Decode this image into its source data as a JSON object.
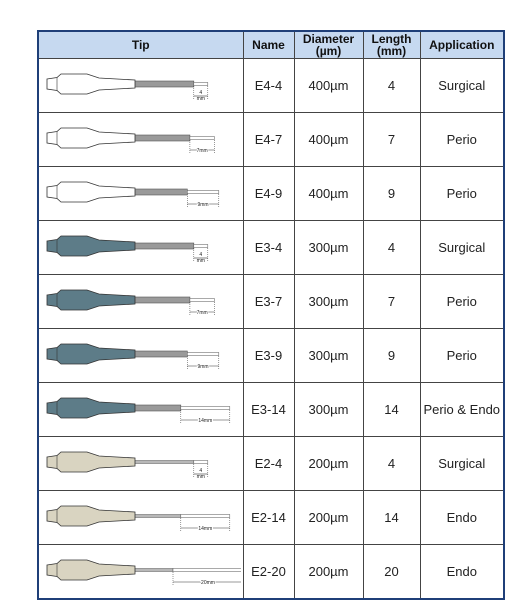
{
  "table": {
    "header": [
      [
        "Tip"
      ],
      [
        "Name"
      ],
      [
        "Diameter",
        "(µm)"
      ],
      [
        "Length",
        "(mm)"
      ],
      [
        "Application"
      ]
    ],
    "rows": [
      {
        "tip_color": "#ffffff",
        "tip_label": [
          "4",
          "mm"
        ],
        "name": "E4-4",
        "diameter": "400µm",
        "length": "4",
        "application": "Surgical"
      },
      {
        "tip_color": "#ffffff",
        "tip_label": [
          "7mm"
        ],
        "name": "E4-7",
        "diameter": "400µm",
        "length": "7",
        "application": "Perio"
      },
      {
        "tip_color": "#ffffff",
        "tip_label": [
          "9mm"
        ],
        "name": "E4-9",
        "diameter": "400µm",
        "length": "9",
        "application": "Perio"
      },
      {
        "tip_color": "#5d7c88",
        "tip_label": [
          "4",
          "mm"
        ],
        "name": "E3-4",
        "diameter": "300µm",
        "length": "4",
        "application": "Surgical"
      },
      {
        "tip_color": "#5d7c88",
        "tip_label": [
          "7mm"
        ],
        "name": "E3-7",
        "diameter": "300µm",
        "length": "7",
        "application": "Perio"
      },
      {
        "tip_color": "#5d7c88",
        "tip_label": [
          "9mm"
        ],
        "name": "E3-9",
        "diameter": "300µm",
        "length": "9",
        "application": "Perio"
      },
      {
        "tip_color": "#5d7c88",
        "tip_label": [
          "14mm"
        ],
        "name": "E3-14",
        "diameter": "300µm",
        "length": "14",
        "application": "Perio & Endo"
      },
      {
        "tip_color": "#d9d4c1",
        "tip_label": [
          "4",
          "mm"
        ],
        "name": "E2-4",
        "diameter": "200µm",
        "length": "4",
        "application": "Surgical"
      },
      {
        "tip_color": "#d9d4c1",
        "tip_label": [
          "14mm"
        ],
        "name": "E2-14",
        "diameter": "200µm",
        "length": "14",
        "application": "Endo"
      },
      {
        "tip_color": "#d9d4c1",
        "tip_label": [
          "20mm"
        ],
        "name": "E2-20",
        "diameter": "200µm",
        "length": "20",
        "application": "Endo"
      }
    ]
  }
}
